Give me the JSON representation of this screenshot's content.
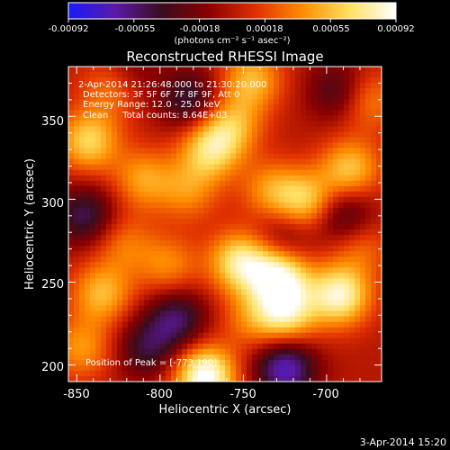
{
  "colorbar": {
    "ticks": [
      "-0.00092",
      "-0.00055",
      "-0.00018",
      "0.00018",
      "0.00055",
      "0.00092"
    ],
    "units": "(photons cm⁻² s⁻¹ asec⁻²)",
    "colormap": [
      "#1a1aff",
      "#5a1aa6",
      "#3a0c1e",
      "#8a0000",
      "#e03000",
      "#ff8c00",
      "#ffe060",
      "#ffffff"
    ]
  },
  "chart_data": {
    "type": "heatmap",
    "title": "Reconstructed RHESSI Image",
    "xlabel": "Heliocentric X (arcsec)",
    "ylabel": "Heliocentric Y (arcsec)",
    "xlim": [
      -855,
      -667
    ],
    "ylim": [
      190,
      380
    ],
    "xticks": [
      -850,
      -800,
      -750,
      -700
    ],
    "yticks": [
      200,
      250,
      300,
      350
    ],
    "zlim": [
      -0.00092,
      0.00092
    ],
    "annotations": [
      "2-Apr-2014 21:26:48.000 to 21:30:20.000",
      "Detectors: 3F 5F 6F 7F 8F 9F, Att 0",
      "Energy Range: 12.0 - 25.0 keV",
      "Clean     Total counts: 8.64E+03"
    ],
    "peak_label": "Position of Peak = [-773,190]",
    "sources": [
      {
        "x": -773,
        "y": 193,
        "value": 0.00092
      },
      {
        "x": -728,
        "y": 253,
        "value": 0.0008
      },
      {
        "x": -692,
        "y": 242,
        "value": 0.00078
      },
      {
        "x": -752,
        "y": 262,
        "value": 0.0007
      },
      {
        "x": -724,
        "y": 230,
        "value": 0.00062
      },
      {
        "x": -770,
        "y": 330,
        "value": 0.0006
      },
      {
        "x": -843,
        "y": 335,
        "value": 0.0006
      },
      {
        "x": -712,
        "y": 298,
        "value": 0.00058
      },
      {
        "x": -835,
        "y": 243,
        "value": 0.0005
      },
      {
        "x": -810,
        "y": 312,
        "value": 0.00042
      },
      {
        "x": -795,
        "y": 260,
        "value": 0.00036
      },
      {
        "x": -745,
        "y": 372,
        "value": 0.0005
      },
      {
        "x": -686,
        "y": 318,
        "value": 0.00055
      },
      {
        "x": -733,
        "y": 305,
        "value": 0.0004
      },
      {
        "x": -757,
        "y": 345,
        "value": 0.00045
      },
      {
        "x": -847,
        "y": 210,
        "value": 0.0004
      },
      {
        "x": -828,
        "y": 368,
        "value": 0.00042
      },
      {
        "x": -676,
        "y": 360,
        "value": 0.0004
      },
      {
        "x": -680,
        "y": 272,
        "value": 0.0003
      },
      {
        "x": -745,
        "y": 228,
        "value": 0.0003
      },
      {
        "x": -783,
        "y": 305,
        "value": 0.00035
      },
      {
        "x": -822,
        "y": 273,
        "value": 0.0003
      },
      {
        "x": -790,
        "y": 228,
        "value": -0.0005
      },
      {
        "x": -808,
        "y": 210,
        "value": -0.0004
      },
      {
        "x": -725,
        "y": 198,
        "value": -0.0007
      },
      {
        "x": -845,
        "y": 290,
        "value": -0.00048
      },
      {
        "x": -782,
        "y": 360,
        "value": -0.00045
      },
      {
        "x": -692,
        "y": 365,
        "value": -0.0004
      },
      {
        "x": -690,
        "y": 290,
        "value": -0.00045
      },
      {
        "x": -820,
        "y": 375,
        "value": -0.0003
      },
      {
        "x": -725,
        "y": 278,
        "value": -0.0003
      }
    ]
  },
  "timestamp": "3-Apr-2014 15:20"
}
